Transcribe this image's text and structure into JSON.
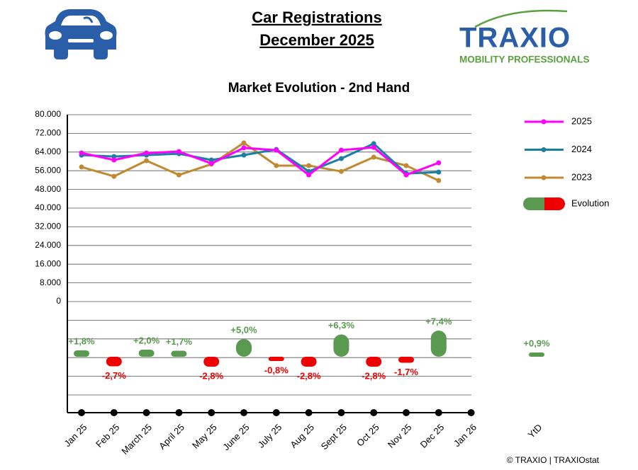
{
  "chart_data": {
    "type": "line",
    "title": "Car Registrations",
    "subtitle": "December 2025",
    "chart_title": "Market Evolution - 2nd Hand",
    "logo": {
      "name": "TRAXIO",
      "tagline": "MOBILITY PROFESSIONALS"
    },
    "source": "© TRAXIO | TRAXIOstat",
    "categories": [
      "Jan 25",
      "Feb 25",
      "March 25",
      "April 25",
      "May 25",
      "June 25",
      "July 25",
      "Aug 25",
      "Sept 25",
      "Oct 25",
      "Nov 25",
      "Dec 25",
      "Jan 26"
    ],
    "series": [
      {
        "name": "2025",
        "color": "#ff00ff",
        "values": [
          63600,
          60600,
          63600,
          64200,
          59100,
          65800,
          64800,
          54200,
          64800,
          66000,
          54200,
          59400,
          null
        ]
      },
      {
        "name": "2024",
        "color": "#1a7fa0",
        "values": [
          62700,
          62100,
          62700,
          63300,
          60600,
          62700,
          65100,
          55700,
          61200,
          67600,
          54800,
          55400,
          null
        ]
      },
      {
        "name": "2023",
        "color": "#c08a30",
        "values": [
          57600,
          53600,
          60300,
          54200,
          58800,
          67900,
          58200,
          58200,
          55700,
          61800,
          58200,
          51800,
          null
        ]
      }
    ],
    "evolution": {
      "name": "Evolution",
      "positive_color": "#5a9a50",
      "negative_color": "#ee0000",
      "values": [
        1.8,
        -2.7,
        2.0,
        1.7,
        -2.8,
        5.0,
        -0.8,
        -2.8,
        6.3,
        -2.8,
        -1.7,
        7.4,
        null
      ],
      "value_labels": [
        "+1,8%",
        "-2,7%",
        "+2,0%",
        "+1,7%",
        "-2,8%",
        "+5,0%",
        "-0,8%",
        "-2,8%",
        "+6,3%",
        "-2,8%",
        "-1,7%",
        "+7,4%",
        null
      ],
      "ytd_label": "YtD",
      "ytd_value": 0.9,
      "ytd_value_label": "+0,9%"
    },
    "ylim": [
      0,
      80000
    ],
    "yticks": [
      {
        "value": 80000,
        "label": "80.000"
      },
      {
        "value": 72000,
        "label": "72.000"
      },
      {
        "value": 64000,
        "label": "64.000"
      },
      {
        "value": 56000,
        "label": "56.000"
      },
      {
        "value": 48000,
        "label": "48.000"
      },
      {
        "value": 40000,
        "label": "40.000"
      },
      {
        "value": 32000,
        "label": "32.000"
      },
      {
        "value": 24000,
        "label": "24.000"
      },
      {
        "value": 16000,
        "label": "16.000"
      },
      {
        "value": 8000,
        "label": "8.000"
      },
      0
    ],
    "grid": true
  }
}
